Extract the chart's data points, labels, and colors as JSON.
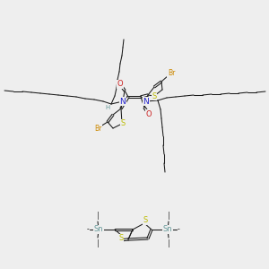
{
  "bg_color": "#eeeeee",
  "colors": {
    "bond": "#1a1a1a",
    "N": "#2222cc",
    "O": "#cc2222",
    "S": "#bbbb00",
    "Br": "#cc8800",
    "Sn": "#669999",
    "H": "#669999"
  },
  "dpi": 100,
  "fig_w": 3.0,
  "fig_h": 3.0
}
